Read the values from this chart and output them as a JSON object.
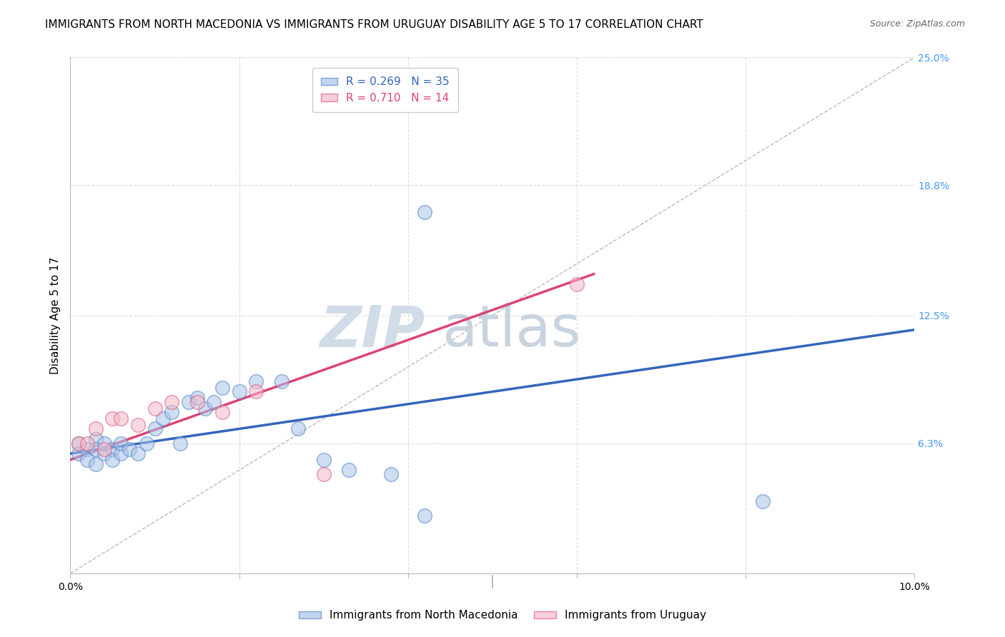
{
  "title": "IMMIGRANTS FROM NORTH MACEDONIA VS IMMIGRANTS FROM URUGUAY DISABILITY AGE 5 TO 17 CORRELATION CHART",
  "source": "Source: ZipAtlas.com",
  "ylabel": "Disability Age 5 to 17",
  "xlim": [
    0.0,
    0.1
  ],
  "ylim": [
    0.0,
    0.25
  ],
  "xtick_vals": [
    0.0,
    0.02,
    0.04,
    0.06,
    0.08,
    0.1
  ],
  "xticklabels": [
    "0.0%",
    "",
    "",
    "",
    "",
    "10.0%"
  ],
  "yticks_right": [
    0.063,
    0.125,
    0.188,
    0.25
  ],
  "ytick_labels_right": [
    "6.3%",
    "12.5%",
    "18.8%",
    "25.0%"
  ],
  "legend_entries": [
    {
      "label": "R = 0.269   N = 35",
      "color": "#6699cc"
    },
    {
      "label": "R = 0.710   N = 14",
      "color": "#ff9999"
    }
  ],
  "blue_scatter_x": [
    0.001,
    0.001,
    0.002,
    0.002,
    0.003,
    0.003,
    0.003,
    0.004,
    0.004,
    0.005,
    0.005,
    0.006,
    0.006,
    0.007,
    0.008,
    0.009,
    0.01,
    0.011,
    0.012,
    0.013,
    0.014,
    0.015,
    0.016,
    0.017,
    0.018,
    0.02,
    0.022,
    0.025,
    0.027,
    0.03,
    0.033,
    0.038,
    0.042,
    0.082,
    0.042
  ],
  "blue_scatter_y": [
    0.063,
    0.058,
    0.06,
    0.055,
    0.065,
    0.06,
    0.053,
    0.058,
    0.063,
    0.06,
    0.055,
    0.058,
    0.063,
    0.06,
    0.058,
    0.063,
    0.07,
    0.075,
    0.078,
    0.063,
    0.083,
    0.085,
    0.08,
    0.083,
    0.09,
    0.088,
    0.093,
    0.093,
    0.07,
    0.055,
    0.05,
    0.048,
    0.028,
    0.035,
    0.175
  ],
  "pink_scatter_x": [
    0.001,
    0.002,
    0.003,
    0.004,
    0.005,
    0.006,
    0.008,
    0.01,
    0.012,
    0.015,
    0.018,
    0.022,
    0.03,
    0.06
  ],
  "pink_scatter_y": [
    0.063,
    0.063,
    0.07,
    0.06,
    0.075,
    0.075,
    0.072,
    0.08,
    0.083,
    0.083,
    0.078,
    0.088,
    0.048,
    0.14
  ],
  "blue_line_x": [
    0.0,
    0.1
  ],
  "blue_line_y": [
    0.058,
    0.118
  ],
  "pink_line_x": [
    0.0,
    0.062
  ],
  "pink_line_y": [
    0.055,
    0.145
  ],
  "diag_line_x": [
    0.0,
    0.1
  ],
  "diag_line_y": [
    0.0,
    0.25
  ],
  "watermark_zip": "ZIP",
  "watermark_atlas": "atlas",
  "watermark_color_zip": "#d0dce8",
  "watermark_color_atlas": "#c8d4e0",
  "title_fontsize": 11,
  "axis_label_fontsize": 11,
  "tick_fontsize": 10,
  "legend_fontsize": 11,
  "source_fontsize": 9,
  "background_color": "#ffffff",
  "grid_color": "#dddddd",
  "blue_color": "#aac4e8",
  "pink_color": "#f4b8c8",
  "blue_edge_color": "#5588cc",
  "pink_edge_color": "#e06080",
  "blue_line_color": "#3366bb",
  "pink_line_color": "#dd4477",
  "right_tick_color": "#4499ff"
}
